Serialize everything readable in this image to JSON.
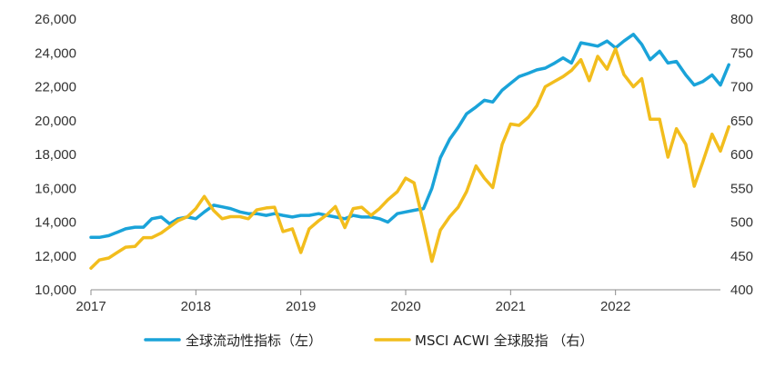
{
  "chart_data": {
    "type": "line",
    "title": "",
    "xlabel": "",
    "ylabel_left": "",
    "ylabel_right": "",
    "x_ticks": [
      "2017",
      "2018",
      "2019",
      "2020",
      "2021",
      "2022"
    ],
    "x_range": [
      2017,
      2023
    ],
    "y_left": {
      "range": [
        10000,
        26000
      ],
      "ticks": [
        10000,
        12000,
        14000,
        16000,
        18000,
        20000,
        22000,
        24000,
        26000
      ],
      "tick_labels": [
        "10,000",
        "12,000",
        "14,000",
        "16,000",
        "18,000",
        "20,000",
        "22,000",
        "24,000",
        "26,000"
      ]
    },
    "y_right": {
      "range": [
        400,
        800
      ],
      "ticks": [
        400,
        450,
        500,
        550,
        600,
        650,
        700,
        750,
        800
      ],
      "tick_labels": [
        "400",
        "450",
        "500",
        "550",
        "600",
        "650",
        "700",
        "750",
        "800"
      ]
    },
    "series": [
      {
        "name": "全球流动性指标（左）",
        "axis": "left",
        "color": "#1aa3d9",
        "points": [
          [
            2017.0,
            13100
          ],
          [
            2017.08,
            13100
          ],
          [
            2017.17,
            13200
          ],
          [
            2017.25,
            13400
          ],
          [
            2017.33,
            13600
          ],
          [
            2017.42,
            13700
          ],
          [
            2017.5,
            13700
          ],
          [
            2017.58,
            14200
          ],
          [
            2017.67,
            14300
          ],
          [
            2017.75,
            13900
          ],
          [
            2017.83,
            14200
          ],
          [
            2017.92,
            14300
          ],
          [
            2018.0,
            14200
          ],
          [
            2018.08,
            14600
          ],
          [
            2018.17,
            15000
          ],
          [
            2018.25,
            14900
          ],
          [
            2018.33,
            14800
          ],
          [
            2018.42,
            14600
          ],
          [
            2018.5,
            14500
          ],
          [
            2018.58,
            14500
          ],
          [
            2018.67,
            14400
          ],
          [
            2018.75,
            14500
          ],
          [
            2018.83,
            14400
          ],
          [
            2018.92,
            14300
          ],
          [
            2019.0,
            14400
          ],
          [
            2019.08,
            14400
          ],
          [
            2019.17,
            14500
          ],
          [
            2019.25,
            14400
          ],
          [
            2019.33,
            14300
          ],
          [
            2019.42,
            14200
          ],
          [
            2019.5,
            14400
          ],
          [
            2019.58,
            14300
          ],
          [
            2019.67,
            14300
          ],
          [
            2019.75,
            14200
          ],
          [
            2019.83,
            14000
          ],
          [
            2019.92,
            14500
          ],
          [
            2020.0,
            14600
          ],
          [
            2020.08,
            14700
          ],
          [
            2020.17,
            14800
          ],
          [
            2020.25,
            16000
          ],
          [
            2020.33,
            17800
          ],
          [
            2020.42,
            18900
          ],
          [
            2020.5,
            19600
          ],
          [
            2020.58,
            20400
          ],
          [
            2020.67,
            20800
          ],
          [
            2020.75,
            21200
          ],
          [
            2020.83,
            21100
          ],
          [
            2020.92,
            21800
          ],
          [
            2021.0,
            22200
          ],
          [
            2021.08,
            22600
          ],
          [
            2021.17,
            22800
          ],
          [
            2021.25,
            23000
          ],
          [
            2021.33,
            23100
          ],
          [
            2021.42,
            23400
          ],
          [
            2021.5,
            23700
          ],
          [
            2021.58,
            23400
          ],
          [
            2021.67,
            24600
          ],
          [
            2021.75,
            24500
          ],
          [
            2021.83,
            24400
          ],
          [
            2021.92,
            24700
          ],
          [
            2022.0,
            24300
          ],
          [
            2022.08,
            24700
          ],
          [
            2022.17,
            25100
          ],
          [
            2022.25,
            24500
          ],
          [
            2022.33,
            23600
          ],
          [
            2022.42,
            24100
          ],
          [
            2022.5,
            23400
          ],
          [
            2022.58,
            23500
          ],
          [
            2022.67,
            22700
          ],
          [
            2022.75,
            22100
          ],
          [
            2022.83,
            22300
          ],
          [
            2022.92,
            22700
          ],
          [
            2023.0,
            22100
          ],
          [
            2023.08,
            23300
          ]
        ]
      },
      {
        "name": "MSCI ACWI 全球股指 （右）",
        "axis": "right",
        "color": "#f2bd1d",
        "points": [
          [
            2017.0,
            432
          ],
          [
            2017.08,
            444
          ],
          [
            2017.17,
            447
          ],
          [
            2017.25,
            455
          ],
          [
            2017.33,
            463
          ],
          [
            2017.42,
            464
          ],
          [
            2017.5,
            477
          ],
          [
            2017.58,
            477
          ],
          [
            2017.67,
            484
          ],
          [
            2017.75,
            493
          ],
          [
            2017.83,
            502
          ],
          [
            2017.92,
            508
          ],
          [
            2018.0,
            520
          ],
          [
            2018.08,
            538
          ],
          [
            2018.17,
            517
          ],
          [
            2018.25,
            505
          ],
          [
            2018.33,
            508
          ],
          [
            2018.42,
            508
          ],
          [
            2018.5,
            505
          ],
          [
            2018.58,
            518
          ],
          [
            2018.67,
            521
          ],
          [
            2018.75,
            522
          ],
          [
            2018.83,
            486
          ],
          [
            2018.92,
            490
          ],
          [
            2019.0,
            455
          ],
          [
            2019.08,
            490
          ],
          [
            2019.17,
            502
          ],
          [
            2019.25,
            511
          ],
          [
            2019.33,
            523
          ],
          [
            2019.42,
            492
          ],
          [
            2019.5,
            520
          ],
          [
            2019.58,
            522
          ],
          [
            2019.67,
            510
          ],
          [
            2019.75,
            520
          ],
          [
            2019.83,
            533
          ],
          [
            2019.92,
            545
          ],
          [
            2020.0,
            565
          ],
          [
            2020.08,
            558
          ],
          [
            2020.17,
            498
          ],
          [
            2020.25,
            442
          ],
          [
            2020.33,
            488
          ],
          [
            2020.42,
            508
          ],
          [
            2020.5,
            522
          ],
          [
            2020.58,
            545
          ],
          [
            2020.67,
            583
          ],
          [
            2020.75,
            565
          ],
          [
            2020.83,
            551
          ],
          [
            2020.92,
            615
          ],
          [
            2021.0,
            645
          ],
          [
            2021.08,
            643
          ],
          [
            2021.17,
            655
          ],
          [
            2021.25,
            672
          ],
          [
            2021.33,
            700
          ],
          [
            2021.42,
            708
          ],
          [
            2021.5,
            715
          ],
          [
            2021.58,
            724
          ],
          [
            2021.67,
            740
          ],
          [
            2021.75,
            709
          ],
          [
            2021.83,
            745
          ],
          [
            2021.92,
            726
          ],
          [
            2022.0,
            756
          ],
          [
            2022.08,
            718
          ],
          [
            2022.17,
            700
          ],
          [
            2022.25,
            712
          ],
          [
            2022.33,
            652
          ],
          [
            2022.42,
            652
          ],
          [
            2022.5,
            596
          ],
          [
            2022.58,
            638
          ],
          [
            2022.67,
            615
          ],
          [
            2022.75,
            553
          ],
          [
            2022.83,
            588
          ],
          [
            2022.92,
            630
          ],
          [
            2023.0,
            605
          ],
          [
            2023.08,
            641
          ]
        ]
      }
    ],
    "legend": {
      "position": "bottom",
      "entries": [
        {
          "label": "全球流动性指标（左）",
          "color": "#1aa3d9"
        },
        {
          "label": "MSCI ACWI 全球股指 （右）",
          "color": "#f2bd1d"
        }
      ]
    },
    "grid": false
  }
}
